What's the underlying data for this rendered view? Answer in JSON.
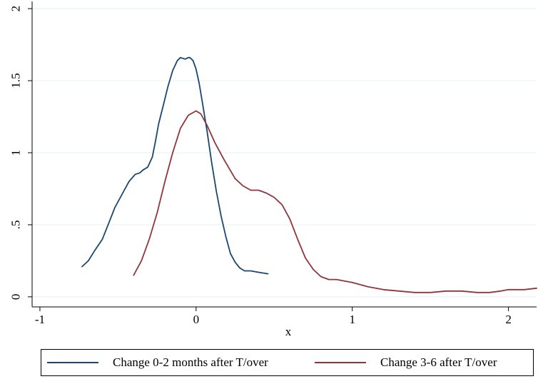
{
  "chart_data": {
    "type": "line",
    "title": "",
    "xlabel": "x",
    "ylabel": "",
    "xlim": [
      -1.05,
      2.18
    ],
    "ylim": [
      -0.07,
      2.05
    ],
    "xticks": [
      -1,
      0,
      1,
      2
    ],
    "xtick_labels": [
      "-1",
      "0",
      "1",
      "2"
    ],
    "yticks": [
      0,
      0.5,
      1,
      1.5,
      2
    ],
    "ytick_labels": [
      "0",
      ".5",
      "1",
      "1.5",
      "2"
    ],
    "grid": true,
    "legend_position": "bottom",
    "series": [
      {
        "name": "Change 0-2 months after T/over",
        "color": "#1a476f",
        "x": [
          -0.73,
          -0.69,
          -0.65,
          -0.6,
          -0.56,
          -0.52,
          -0.47,
          -0.43,
          -0.39,
          -0.36,
          -0.34,
          -0.31,
          -0.28,
          -0.26,
          -0.24,
          -0.21,
          -0.18,
          -0.15,
          -0.12,
          -0.1,
          -0.07,
          -0.05,
          -0.04,
          -0.02,
          0.0,
          0.02,
          0.04,
          0.07,
          0.1,
          0.13,
          0.16,
          0.19,
          0.22,
          0.25,
          0.28,
          0.31,
          0.35,
          0.4,
          0.46
        ],
        "y": [
          0.21,
          0.25,
          0.32,
          0.4,
          0.51,
          0.62,
          0.72,
          0.8,
          0.85,
          0.86,
          0.88,
          0.9,
          0.97,
          1.08,
          1.2,
          1.33,
          1.46,
          1.57,
          1.64,
          1.66,
          1.65,
          1.66,
          1.66,
          1.64,
          1.58,
          1.48,
          1.35,
          1.15,
          0.93,
          0.73,
          0.56,
          0.42,
          0.3,
          0.24,
          0.2,
          0.18,
          0.18,
          0.17,
          0.16
        ]
      },
      {
        "name": "Change 3-6 after T/over",
        "color": "#90353b",
        "x": [
          -0.4,
          -0.35,
          -0.3,
          -0.25,
          -0.2,
          -0.15,
          -0.1,
          -0.05,
          0.0,
          0.03,
          0.07,
          0.12,
          0.18,
          0.25,
          0.3,
          0.35,
          0.4,
          0.45,
          0.5,
          0.55,
          0.6,
          0.65,
          0.7,
          0.75,
          0.8,
          0.85,
          0.9,
          0.95,
          1.0,
          1.1,
          1.2,
          1.3,
          1.4,
          1.5,
          1.6,
          1.7,
          1.8,
          1.88,
          1.95,
          2.0,
          2.1,
          2.18
        ],
        "y": [
          0.15,
          0.25,
          0.4,
          0.58,
          0.8,
          1.0,
          1.17,
          1.26,
          1.29,
          1.27,
          1.19,
          1.07,
          0.95,
          0.82,
          0.77,
          0.74,
          0.74,
          0.72,
          0.69,
          0.64,
          0.54,
          0.4,
          0.27,
          0.19,
          0.14,
          0.12,
          0.12,
          0.11,
          0.1,
          0.07,
          0.05,
          0.04,
          0.03,
          0.03,
          0.04,
          0.04,
          0.03,
          0.03,
          0.04,
          0.05,
          0.05,
          0.06
        ]
      }
    ]
  }
}
